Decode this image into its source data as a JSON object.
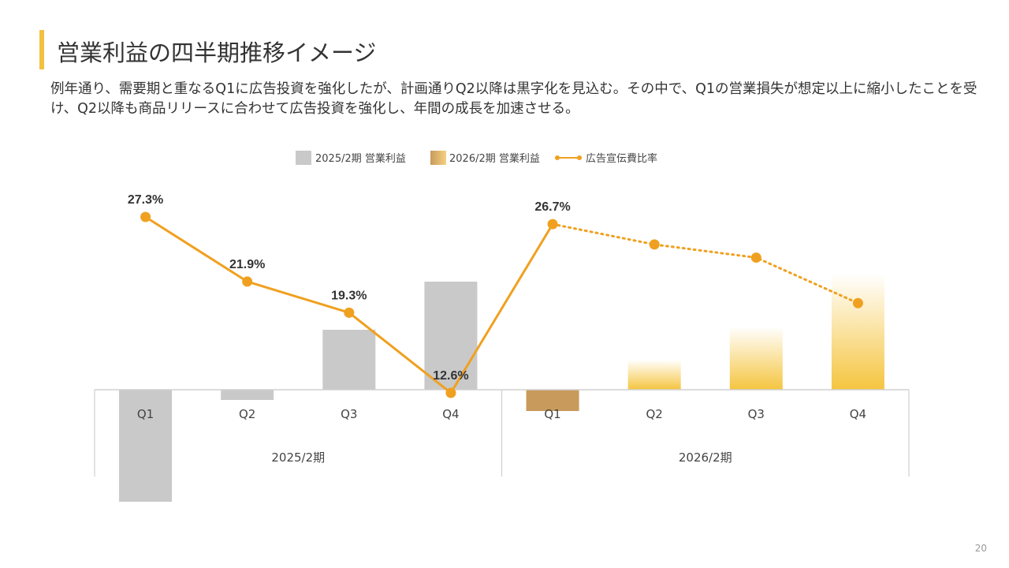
{
  "title": "営業利益の四半期推移イメージ",
  "subtitle": "例年通り、需要期と重なるQ1に広告投資を強化したが、計画通りQ2以降は黒字化を見込む。その中で、Q1の営業損失が想定以上に縮小したことを受け、Q2以降も商品リリースに合わせて広告投資を強化し、年間の成長を加速させる。",
  "page_number": "20",
  "colors": {
    "accent": "#F5C042",
    "bar_2025": "#C9C9C9",
    "bar_2026_q1": "#C89A5C",
    "bar_2026_gradient": "#F5C540",
    "line": "#F0A020",
    "axis": "#D0D0D0"
  },
  "chart_data": {
    "type": "bar",
    "legend_position": "top",
    "groups": [
      "2025/2期",
      "2026/2期"
    ],
    "categories": [
      "Q1",
      "Q2",
      "Q3",
      "Q4",
      "Q1",
      "Q2",
      "Q3",
      "Q4"
    ],
    "series": [
      {
        "name": "2025/2期 営業利益",
        "type": "bar",
        "values": [
          -142,
          -13,
          76,
          137,
          null,
          null,
          null,
          null
        ]
      },
      {
        "name": "2026/2期 営業利益",
        "type": "bar",
        "style": "gradient",
        "values": [
          null,
          null,
          null,
          null,
          -27,
          38,
          80,
          147
        ]
      },
      {
        "name": "広告宣伝費比率",
        "type": "line",
        "unit": "%",
        "values": [
          27.3,
          21.9,
          19.3,
          12.6,
          26.7,
          25.0,
          23.9,
          20.1
        ],
        "data_labels": [
          "27.3%",
          "21.9%",
          "19.3%",
          "12.6%",
          "26.7%",
          null,
          null,
          null
        ],
        "dashed_from_index": 4
      }
    ]
  }
}
